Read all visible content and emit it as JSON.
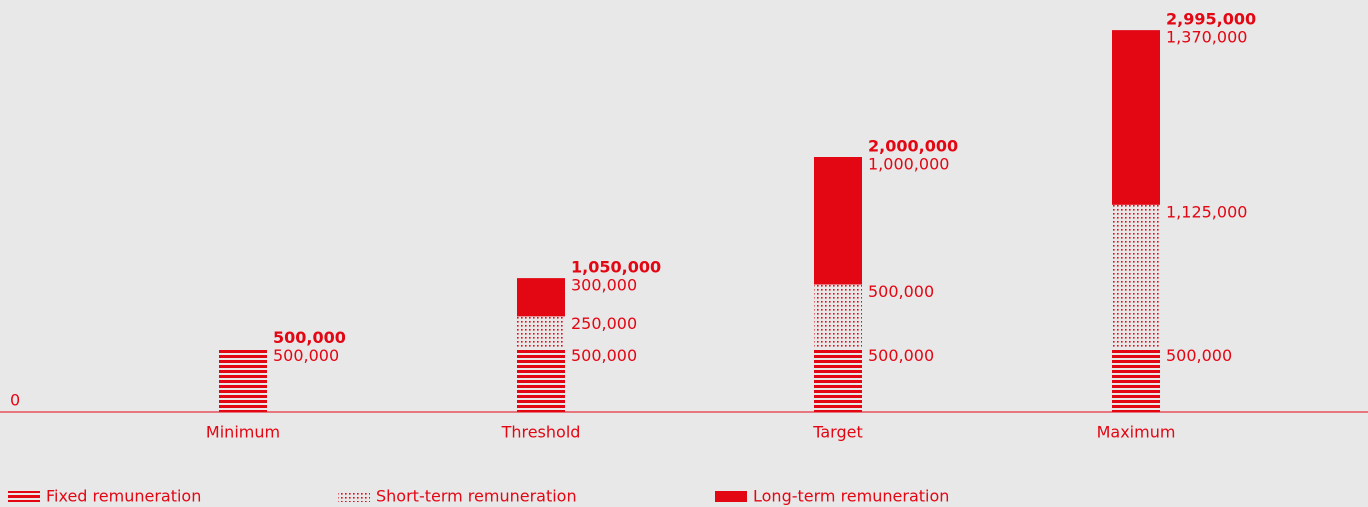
{
  "chart_data": {
    "type": "stacked_bar",
    "categories": [
      "Minimum",
      "Threshold",
      "Target",
      "Maximum"
    ],
    "series": [
      {
        "name": "Fixed remuneration",
        "color": "#e30613",
        "pattern": "stripes",
        "values": [
          500000,
          500000,
          500000,
          500000
        ],
        "value_labels": [
          "500,000",
          "500,000",
          "500,000",
          "500,000"
        ]
      },
      {
        "name": "Short-term remuneration",
        "color": "#e30613",
        "pattern": "dots",
        "values": [
          null,
          250000,
          500000,
          1125000
        ],
        "value_labels": [
          null,
          "250,000",
          "500,000",
          "1,125,000"
        ]
      },
      {
        "name": "Long-term remuneration",
        "color": "#e30613",
        "pattern": "solid",
        "values": [
          null,
          300000,
          1000000,
          1370000
        ],
        "value_labels": [
          null,
          "300,000",
          "1,000,000",
          "1,370,000"
        ]
      }
    ],
    "totals": [
      500000,
      1050000,
      2000000,
      2995000
    ],
    "total_labels": [
      "500,000",
      "1,050,000",
      "2,000,000",
      "2,995,000"
    ],
    "ylim": [
      0,
      3000000
    ],
    "yticks": [
      0
    ],
    "grid": false
  }
}
